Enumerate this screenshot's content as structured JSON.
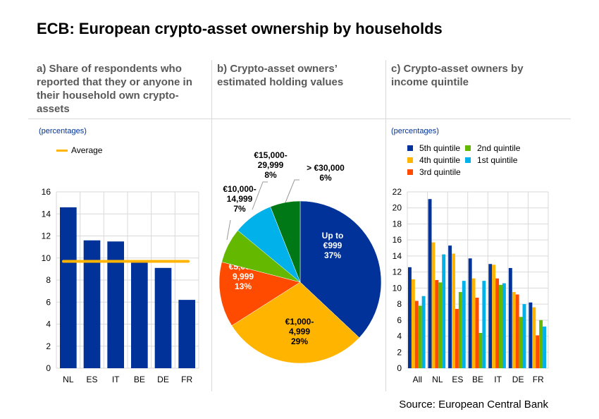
{
  "title": "ECB: European crypto-asset ownership by households",
  "source": "Source: European Central Bank",
  "colors": {
    "blue": "#003299",
    "yellow": "#FFB400",
    "red": "#FF4B00",
    "green": "#65B800",
    "lightblue": "#00B1EA",
    "darkgreen": "#007816"
  },
  "panels": {
    "a": {
      "subtitle": "a) Share of respondents who reported that they or anyone in their household own crypto-assets",
      "unit": "(percentages)",
      "legend": "Average"
    },
    "b": {
      "subtitle": "b) Crypto-asset owners’ estimated holding values"
    },
    "c": {
      "subtitle": "c) Crypto-asset owners by income quintile",
      "unit": "(percentages)"
    }
  },
  "chart_data": [
    {
      "type": "bar",
      "categories": [
        "NL",
        "ES",
        "IT",
        "BE",
        "DE",
        "FR"
      ],
      "values": [
        14.6,
        11.6,
        11.5,
        9.6,
        9.1,
        6.2
      ],
      "average": 9.7,
      "ylim": [
        0,
        16
      ],
      "yticks": [
        0,
        2,
        4,
        6,
        8,
        10,
        12,
        14,
        16
      ],
      "grid": true,
      "legend": "top-left"
    },
    {
      "type": "pie",
      "slices": [
        {
          "label": [
            "Up to",
            "€999"
          ],
          "value": 37,
          "pct": "37%",
          "color": "#003299"
        },
        {
          "label": [
            "€1,000-",
            "4,999"
          ],
          "value": 29,
          "pct": "29%",
          "color": "#FFB400"
        },
        {
          "label": [
            "€5,000-",
            "9,999"
          ],
          "value": 13,
          "pct": "13%",
          "color": "#FF4B00"
        },
        {
          "label": [
            "€10,000-",
            "14,999"
          ],
          "value": 7,
          "pct": "7%",
          "color": "#65B800"
        },
        {
          "label": [
            "€15,000-",
            "29,999"
          ],
          "value": 8,
          "pct": "8%",
          "color": "#00B1EA"
        },
        {
          "label": [
            "> €30,000"
          ],
          "value": 6,
          "pct": "6%",
          "color": "#007816"
        }
      ]
    },
    {
      "type": "bar",
      "categories": [
        "All",
        "NL",
        "ES",
        "BE",
        "IT",
        "DE",
        "FR"
      ],
      "ylim": [
        0,
        22
      ],
      "yticks": [
        0,
        2,
        4,
        6,
        8,
        10,
        12,
        14,
        16,
        18,
        20,
        22
      ],
      "grid": true,
      "legend": "top-left",
      "series": [
        {
          "name": "5th quintile",
          "color": "#003299",
          "values": [
            12.6,
            21.1,
            15.3,
            13.7,
            13.0,
            12.5,
            8.2
          ]
        },
        {
          "name": "4th quintile",
          "color": "#FFB400",
          "values": [
            11.1,
            15.7,
            14.3,
            11.2,
            12.9,
            9.5,
            7.6
          ]
        },
        {
          "name": "3rd quintile",
          "color": "#FF4B00",
          "values": [
            8.4,
            11.0,
            7.4,
            8.8,
            11.2,
            9.2,
            4.1
          ]
        },
        {
          "name": "2nd quintile",
          "color": "#65B800",
          "values": [
            7.8,
            10.7,
            9.5,
            4.4,
            10.4,
            6.4,
            6.0
          ]
        },
        {
          "name": "1st quintile",
          "color": "#00B1EA",
          "values": [
            9.0,
            14.2,
            10.9,
            10.9,
            10.6,
            8.0,
            5.2
          ]
        }
      ]
    }
  ]
}
